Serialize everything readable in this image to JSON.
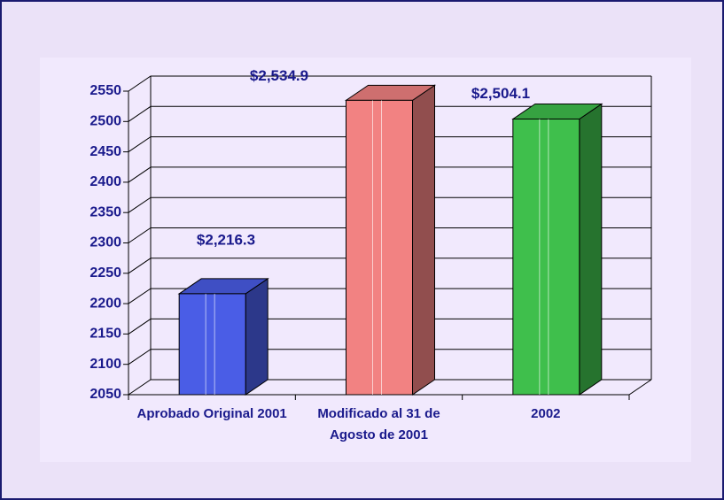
{
  "chart_data": {
    "type": "bar3d",
    "categories": [
      "Aprobado Original 2001",
      "Modificado al 31 de Agosto de 2001",
      "2002"
    ],
    "values": [
      2216.3,
      2534.9,
      2504.1
    ],
    "value_labels": [
      "$2,216.3",
      "$2,534.9",
      "$2,504.1"
    ],
    "colors": [
      "#4a5de6",
      "#f28282",
      "#3fbf4c"
    ],
    "ylim": [
      2050,
      2550
    ],
    "yticks": [
      2050,
      2100,
      2150,
      2200,
      2250,
      2300,
      2350,
      2400,
      2450,
      2500,
      2550
    ],
    "grid": true
  }
}
